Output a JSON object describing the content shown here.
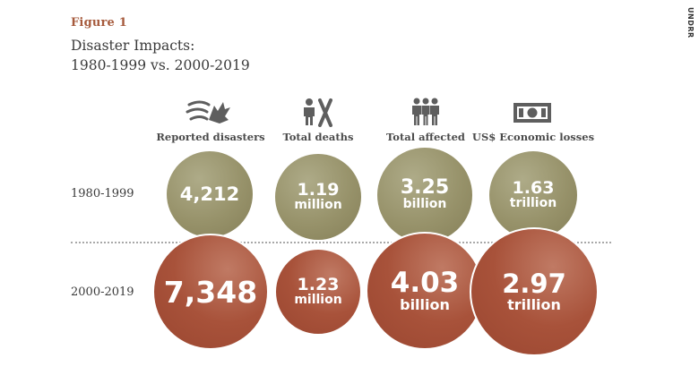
{
  "figure_label": "Figure 1",
  "title_lines": [
    "Disaster Impacts:",
    "1980-1999 vs. 2000-2019"
  ],
  "watermark": "UNDRR",
  "colors": {
    "period_1980_1999": "#97926a",
    "period_2000_2019": "#a8523a",
    "figure_label": "#a65a3c",
    "icons": "#5e5e5e"
  },
  "chart_data": {
    "type": "bubble",
    "title": "Disaster Impacts: 1980-1999 vs. 2000-2019",
    "categories": [
      "Reported disasters",
      "Total deaths",
      "Total affected",
      "US$ Economic losses"
    ],
    "icons": [
      "storm-wind-icon",
      "deaths-person-x-icon",
      "affected-people-icon",
      "banknote-icon"
    ],
    "series": [
      {
        "name": "1980-1999",
        "values": [
          4212,
          1190000,
          3250000000,
          1630000000000
        ],
        "labels": [
          {
            "num": "4,212",
            "unit": ""
          },
          {
            "num": "1.19",
            "unit": "million"
          },
          {
            "num": "3.25",
            "unit": "billion"
          },
          {
            "num": "1.63",
            "unit": "trillion"
          }
        ]
      },
      {
        "name": "2000-2019",
        "values": [
          7348,
          1230000,
          4030000000,
          2970000000000
        ],
        "labels": [
          {
            "num": "7,348",
            "unit": ""
          },
          {
            "num": "1.23",
            "unit": "million"
          },
          {
            "num": "4.03",
            "unit": "billion"
          },
          {
            "num": "2.97",
            "unit": "trillion"
          }
        ]
      }
    ]
  }
}
